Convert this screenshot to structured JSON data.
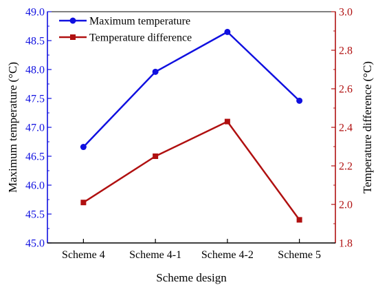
{
  "chart_data": {
    "type": "line",
    "categories": [
      "Scheme 4",
      "Scheme 4-1",
      "Scheme 4-2",
      "Scheme 5"
    ],
    "xlabel": "Scheme design",
    "ylabel_left": "Maximum temperature (°C)",
    "ylabel_right": "Temperature difference (°C)",
    "ylim_left": [
      45.0,
      49.0
    ],
    "ylim_right": [
      1.8,
      3.0
    ],
    "yticks_left": [
      "45.0",
      "45.5",
      "46.0",
      "46.5",
      "47.0",
      "47.5",
      "48.0",
      "48.5",
      "49.0"
    ],
    "yticks_right": [
      "1.8",
      "2.0",
      "2.2",
      "2.4",
      "2.6",
      "2.8",
      "3.0"
    ],
    "grid": false,
    "legend_position": "top-left",
    "series": [
      {
        "name": "Maximum temperature",
        "axis": "left",
        "marker": "circle",
        "color": "#1010e0",
        "values": [
          46.66,
          47.96,
          48.65,
          47.46
        ]
      },
      {
        "name": "Temperature difference",
        "axis": "right",
        "marker": "square",
        "color": "#b01010",
        "values": [
          2.01,
          2.25,
          2.43,
          1.92
        ]
      }
    ],
    "axis_colors": {
      "left": "#1010e0",
      "right": "#b01010",
      "bottom": "#000000"
    }
  }
}
